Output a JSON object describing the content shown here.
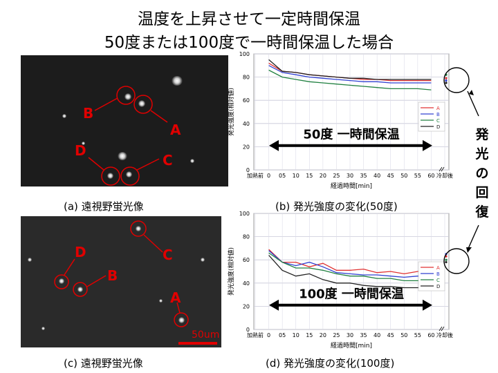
{
  "title_line1": "温度を上昇させて一定時間保温",
  "title_line2": "50度または100度で一時間保温した場合",
  "side_label": [
    "発",
    "光",
    "の",
    "回",
    "復"
  ],
  "captions": {
    "a": "(a) 遠視野蛍光像",
    "b": "(b) 発光強度の変化(50度)",
    "c": "(c) 遠視野蛍光像",
    "d": "(d) 発光強度の変化(100度)"
  },
  "image_a_labels": {
    "A": "A",
    "B": "B",
    "C": "C",
    "D": "D"
  },
  "image_c_labels": {
    "A": "A",
    "B": "B",
    "C": "C",
    "D": "D",
    "scale": "50um"
  },
  "colors": {
    "A": "#e03030",
    "B": "#3040d0",
    "C": "#208040",
    "D": "#202020",
    "marker": "#e00000"
  },
  "chart_data": [
    {
      "type": "line",
      "title": "",
      "xlabel": "経過時間[min]",
      "ylabel": "発光強度(相対値)",
      "x_ticks": [
        "加熱前",
        "0",
        "05",
        "10",
        "15",
        "20",
        "25",
        "30",
        "35",
        "40",
        "45",
        "50",
        "55",
        "60",
        "冷却後"
      ],
      "y_ticks": [
        "0",
        "20",
        "40",
        "60",
        "80",
        "100"
      ],
      "ylim": [
        0,
        100
      ],
      "annotation": "50度 一時間保温",
      "legend": [
        "A",
        "B",
        "C",
        "D"
      ],
      "grid": true,
      "series": [
        {
          "name": "A",
          "color": "#e03030",
          "x": [
            0,
            5,
            10,
            15,
            20,
            25,
            30,
            35,
            40,
            45,
            50,
            55,
            60
          ],
          "values": [
            92,
            85,
            84,
            82,
            81,
            80,
            79,
            78,
            78,
            77,
            77,
            77,
            77
          ],
          "after_cooling": 79
        },
        {
          "name": "B",
          "color": "#3040d0",
          "x": [
            0,
            5,
            10,
            15,
            20,
            25,
            30,
            35,
            40,
            45,
            50,
            55,
            60
          ],
          "values": [
            90,
            84,
            82,
            80,
            79,
            78,
            77,
            76,
            76,
            75,
            75,
            75,
            75
          ],
          "after_cooling": 77
        },
        {
          "name": "C",
          "color": "#208040",
          "x": [
            0,
            5,
            10,
            15,
            20,
            25,
            30,
            35,
            40,
            45,
            50,
            55,
            60
          ],
          "values": [
            86,
            80,
            78,
            76,
            75,
            74,
            73,
            72,
            71,
            70,
            70,
            70,
            69
          ],
          "after_cooling": 82
        },
        {
          "name": "D",
          "color": "#202020",
          "x": [
            0,
            5,
            10,
            15,
            20,
            25,
            30,
            35,
            40,
            45,
            50,
            55,
            60
          ],
          "values": [
            95,
            85,
            84,
            82,
            81,
            80,
            79,
            79,
            78,
            78,
            78,
            78,
            78
          ],
          "after_cooling": 75
        }
      ]
    },
    {
      "type": "line",
      "title": "",
      "xlabel": "経過時間[min]",
      "ylabel": "発光強度(相対値)",
      "x_ticks": [
        "加熱前",
        "0",
        "05",
        "10",
        "15",
        "20",
        "25",
        "30",
        "35",
        "40",
        "45",
        "50",
        "55",
        "60",
        "冷却後"
      ],
      "y_ticks": [
        "0",
        "20",
        "40",
        "60",
        "80",
        "100"
      ],
      "ylim": [
        0,
        100
      ],
      "annotation": "100度 一時間保温",
      "legend": [
        "A",
        "B",
        "C",
        "D"
      ],
      "grid": true,
      "series": [
        {
          "name": "A",
          "color": "#e03030",
          "x": [
            0,
            5,
            10,
            15,
            20,
            25,
            30,
            35,
            40,
            45,
            50,
            55,
            60
          ],
          "values": [
            69,
            58,
            58,
            54,
            57,
            51,
            51,
            52,
            49,
            50,
            48,
            50,
            50
          ],
          "after_cooling": 63
        },
        {
          "name": "B",
          "color": "#3040d0",
          "x": [
            0,
            5,
            10,
            15,
            20,
            25,
            30,
            35,
            40,
            45,
            50,
            55,
            60
          ],
          "values": [
            68,
            58,
            55,
            58,
            54,
            49,
            48,
            47,
            47,
            46,
            45,
            46,
            46
          ],
          "after_cooling": 65
        },
        {
          "name": "C",
          "color": "#208040",
          "x": [
            0,
            5,
            10,
            15,
            20,
            25,
            30,
            35,
            40,
            45,
            50,
            55,
            60
          ],
          "values": [
            66,
            58,
            53,
            53,
            51,
            48,
            46,
            46,
            44,
            44,
            42,
            42,
            42
          ],
          "after_cooling": 60
        },
        {
          "name": "D",
          "color": "#202020",
          "x": [
            0,
            5,
            10,
            15,
            20,
            25,
            30,
            35,
            40,
            45,
            50,
            55,
            60
          ],
          "values": [
            64,
            51,
            46,
            48,
            43,
            40,
            40,
            38,
            37,
            37,
            36,
            36,
            36
          ],
          "after_cooling": 58
        }
      ]
    }
  ]
}
